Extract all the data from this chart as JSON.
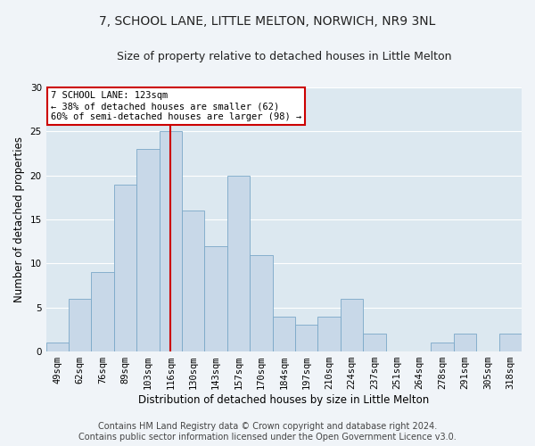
{
  "title": "7, SCHOOL LANE, LITTLE MELTON, NORWICH, NR9 3NL",
  "subtitle": "Size of property relative to detached houses in Little Melton",
  "xlabel": "Distribution of detached houses by size in Little Melton",
  "ylabel": "Number of detached properties",
  "footer_line1": "Contains HM Land Registry data © Crown copyright and database right 2024.",
  "footer_line2": "Contains public sector information licensed under the Open Government Licence v3.0.",
  "bin_labels": [
    "49sqm",
    "62sqm",
    "76sqm",
    "89sqm",
    "103sqm",
    "116sqm",
    "130sqm",
    "143sqm",
    "157sqm",
    "170sqm",
    "184sqm",
    "197sqm",
    "210sqm",
    "224sqm",
    "237sqm",
    "251sqm",
    "264sqm",
    "278sqm",
    "291sqm",
    "305sqm",
    "318sqm"
  ],
  "bar_values": [
    1,
    6,
    9,
    19,
    23,
    25,
    16,
    12,
    20,
    11,
    4,
    3,
    4,
    6,
    2,
    0,
    0,
    1,
    2,
    0,
    2
  ],
  "bar_color": "#c8d8e8",
  "bar_edge_color": "#7aa8c8",
  "vline_x_index": 5.5,
  "annotation_title": "7 SCHOOL LANE: 123sqm",
  "annotation_line1": "← 38% of detached houses are smaller (62)",
  "annotation_line2": "60% of semi-detached houses are larger (98) →",
  "ylim": [
    0,
    30
  ],
  "yticks": [
    0,
    5,
    10,
    15,
    20,
    25,
    30
  ],
  "fig_bg_color": "#f0f4f8",
  "axes_bg_color": "#dce8f0",
  "grid_color": "#ffffff",
  "annotation_box_color": "#ffffff",
  "annotation_box_edge": "#cc0000",
  "vline_color": "#cc0000",
  "title_fontsize": 10,
  "subtitle_fontsize": 9,
  "axis_label_fontsize": 8.5,
  "tick_fontsize": 7.5,
  "annotation_fontsize": 7.5,
  "footer_fontsize": 7
}
